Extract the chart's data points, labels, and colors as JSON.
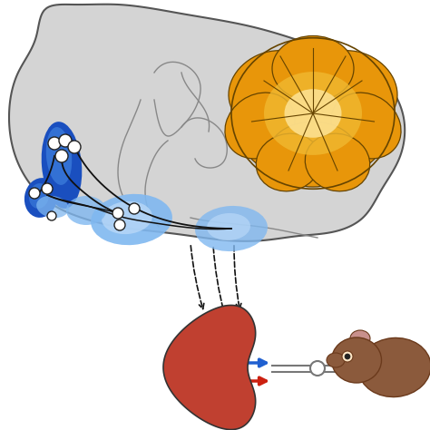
{
  "bg_color": "#ffffff",
  "brain_fill_color": "#d4d4d4",
  "brain_edge_color": "#555555",
  "inner_line_color": "#888888",
  "cerebellum_outer": "#e8960a",
  "cerebellum_mid": "#f0b830",
  "cerebellum_inner": "#fce090",
  "cerebellum_line": "#664400",
  "blue_dark": "#1a4fbf",
  "blue_mid": "#3878d8",
  "blue_light": "#80b8f0",
  "blue_vlight": "#b8d8f8",
  "node_fc": "#ffffff",
  "node_ec": "#222222",
  "line_color": "#111111",
  "arrow_color": "#111111",
  "kidney_color": "#c04030",
  "kidney_edge": "#333333",
  "kidney_blue": "#2060d0",
  "kidney_red": "#cc2010",
  "mouse_body": "#8b5a3c",
  "mouse_dark": "#6b3a1c",
  "connector_color": "#777777",
  "white": "#ffffff"
}
